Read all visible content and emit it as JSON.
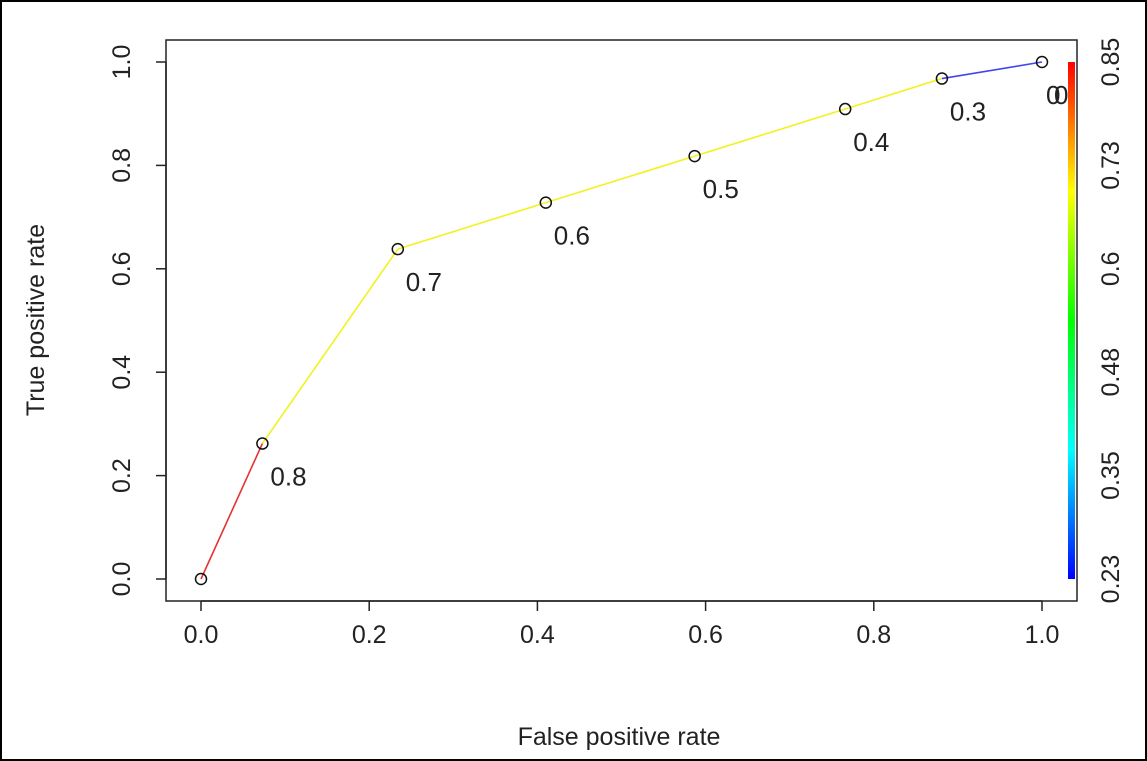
{
  "chart_data": {
    "type": "line",
    "title": "",
    "xlabel": "False positive rate",
    "ylabel": "True positive rate",
    "xlim": [
      0,
      1
    ],
    "ylim": [
      0,
      1
    ],
    "x_ticks": [
      "0.0",
      "0.2",
      "0.4",
      "0.6",
      "0.8",
      "1.0"
    ],
    "y_ticks": [
      "0.0",
      "0.2",
      "0.4",
      "0.6",
      "0.8",
      "1.0"
    ],
    "grid": false,
    "points": [
      {
        "x": 0.0,
        "y": 0.0,
        "label": ""
      },
      {
        "x": 0.073,
        "y": 0.262,
        "label": "0.8"
      },
      {
        "x": 0.234,
        "y": 0.638,
        "label": "0.7"
      },
      {
        "x": 0.41,
        "y": 0.728,
        "label": "0.6"
      },
      {
        "x": 0.587,
        "y": 0.818,
        "label": "0.5"
      },
      {
        "x": 0.766,
        "y": 0.909,
        "label": "0.4"
      },
      {
        "x": 0.881,
        "y": 0.968,
        "label": "0.3"
      },
      {
        "x": 1.0,
        "y": 1.0,
        "label": "0"
      }
    ],
    "segment_colors": [
      "#e83232",
      "#f2f21e",
      "#f2f21e",
      "#f2f21e",
      "#f2f21e",
      "#f2f21e",
      "#4444ee"
    ],
    "colorbar": {
      "ticks": [
        "0.23",
        "0.35",
        "0.48",
        "0.6",
        "0.73",
        "0.85"
      ],
      "range": [
        0.23,
        0.85
      ],
      "colors": [
        "#0000ff",
        "#00ffff",
        "#00ff00",
        "#ffff00",
        "#ff0000"
      ]
    }
  }
}
